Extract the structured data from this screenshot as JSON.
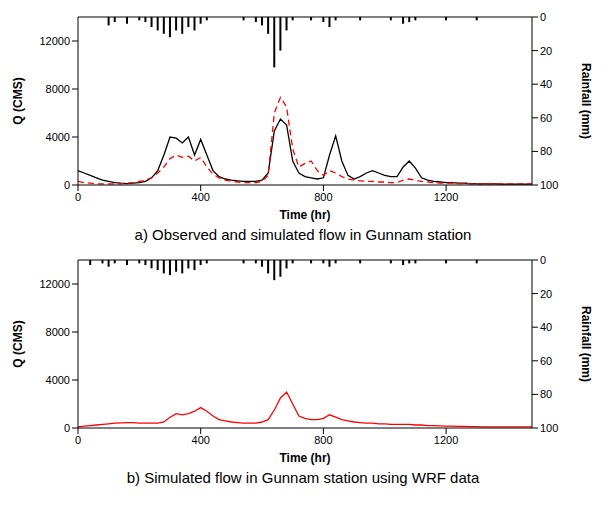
{
  "chart_data": [
    {
      "type": "line",
      "title": "a) Observed and simulated flow in Gunnam station",
      "x_label": "Time (hr)",
      "y_label": "Q (CMS)",
      "y2_label": "Rainfall (mm)",
      "x": [
        0,
        20,
        40,
        60,
        80,
        100,
        120,
        140,
        160,
        180,
        200,
        220,
        240,
        260,
        280,
        300,
        320,
        340,
        360,
        380,
        400,
        420,
        440,
        460,
        480,
        500,
        520,
        540,
        560,
        580,
        600,
        620,
        640,
        660,
        680,
        700,
        720,
        740,
        760,
        780,
        800,
        820,
        840,
        860,
        880,
        900,
        920,
        940,
        960,
        980,
        1000,
        1020,
        1040,
        1060,
        1080,
        1100,
        1120,
        1140,
        1160,
        1180,
        1200,
        1220,
        1240,
        1260,
        1280,
        1300,
        1320,
        1340,
        1360,
        1380,
        1400,
        1420,
        1440,
        1460,
        1480
      ],
      "xlim": [
        0,
        1480
      ],
      "xticks": [
        0,
        400,
        800,
        1200
      ],
      "ylim": [
        0,
        14000
      ],
      "yticks": [
        0,
        4000,
        8000,
        12000
      ],
      "y2lim": [
        100,
        0
      ],
      "y2ticks": [
        0,
        20,
        40,
        60,
        80,
        100
      ],
      "series": [
        {
          "type": "line",
          "color": "#000000",
          "line_style": "solid",
          "values": [
            1200,
            1000,
            800,
            600,
            400,
            300,
            200,
            150,
            120,
            150,
            200,
            300,
            600,
            1200,
            2500,
            4000,
            3900,
            3500,
            4000,
            2500,
            3800,
            2500,
            1200,
            700,
            500,
            400,
            350,
            300,
            300,
            300,
            400,
            1000,
            4500,
            5500,
            5000,
            2000,
            1000,
            700,
            600,
            500,
            600,
            2500,
            4100,
            2000,
            800,
            500,
            700,
            1000,
            1200,
            1000,
            800,
            700,
            700,
            1500,
            2000,
            1400,
            600,
            400,
            300,
            250,
            200,
            200,
            150,
            150,
            120,
            100,
            100,
            100,
            100,
            80,
            80,
            80,
            80,
            80,
            80
          ]
        },
        {
          "type": "line",
          "color": "#ff0000",
          "line_style": "dashed",
          "values": [
            300,
            200,
            150,
            100,
            100,
            100,
            100,
            100,
            150,
            200,
            300,
            400,
            600,
            1000,
            1500,
            2200,
            2500,
            2300,
            2400,
            2000,
            2300,
            1500,
            900,
            600,
            400,
            300,
            250,
            200,
            200,
            200,
            300,
            800,
            6000,
            7300,
            6500,
            3000,
            1500,
            1800,
            2000,
            1200,
            800,
            1200,
            1000,
            700,
            500,
            400,
            350,
            300,
            300,
            250,
            250,
            200,
            200,
            400,
            500,
            400,
            300,
            250,
            200,
            150,
            150,
            150,
            120,
            120,
            100,
            100,
            100,
            100,
            100,
            100,
            100,
            100,
            100,
            100,
            100
          ]
        },
        {
          "type": "bar",
          "axis": "y2",
          "color": "#000000",
          "values": [
            0,
            0,
            0,
            0,
            0,
            5,
            3,
            0,
            4,
            0,
            2,
            3,
            6,
            8,
            10,
            12,
            8,
            10,
            6,
            8,
            4,
            2,
            0,
            0,
            0,
            0,
            0,
            2,
            0,
            3,
            5,
            10,
            30,
            20,
            8,
            2,
            0,
            0,
            2,
            0,
            3,
            6,
            2,
            0,
            0,
            0,
            2,
            0,
            0,
            0,
            0,
            2,
            0,
            4,
            3,
            2,
            0,
            0,
            0,
            0,
            2,
            0,
            0,
            0,
            0,
            2,
            0,
            0,
            0,
            0,
            0,
            0,
            0,
            0,
            0
          ]
        }
      ]
    },
    {
      "type": "line",
      "title": "b) Simulated flow in Gunnam station using WRF data",
      "x_label": "Time (hr)",
      "y_label": "Q (CMS)",
      "y2_label": "Rainfall (mm)",
      "x": [
        0,
        20,
        40,
        60,
        80,
        100,
        120,
        140,
        160,
        180,
        200,
        220,
        240,
        260,
        280,
        300,
        320,
        340,
        360,
        380,
        400,
        420,
        440,
        460,
        480,
        500,
        520,
        540,
        560,
        580,
        600,
        620,
        640,
        660,
        680,
        700,
        720,
        740,
        760,
        780,
        800,
        820,
        840,
        860,
        880,
        900,
        920,
        940,
        960,
        980,
        1000,
        1020,
        1040,
        1060,
        1080,
        1100,
        1120,
        1140,
        1160,
        1180,
        1200,
        1220,
        1240,
        1260,
        1280,
        1300,
        1320,
        1340,
        1360,
        1380,
        1400,
        1420,
        1440,
        1460,
        1480
      ],
      "xlim": [
        0,
        1480
      ],
      "xticks": [
        0,
        400,
        800,
        1200
      ],
      "ylim": [
        0,
        14000
      ],
      "yticks": [
        0,
        4000,
        8000,
        12000
      ],
      "y2lim": [
        100,
        0
      ],
      "y2ticks": [
        0,
        20,
        40,
        60,
        80,
        100
      ],
      "series": [
        {
          "type": "line",
          "color": "#ff0000",
          "line_style": "solid",
          "values": [
            100,
            150,
            200,
            250,
            300,
            350,
            400,
            420,
            450,
            450,
            400,
            400,
            400,
            400,
            500,
            900,
            1200,
            1100,
            1200,
            1400,
            1700,
            1400,
            1000,
            700,
            600,
            500,
            450,
            400,
            400,
            400,
            500,
            700,
            1500,
            2500,
            3000,
            2000,
            1000,
            800,
            700,
            700,
            800,
            1100,
            900,
            700,
            600,
            500,
            450,
            400,
            400,
            350,
            350,
            300,
            300,
            300,
            300,
            250,
            250,
            200,
            200,
            180,
            160,
            150,
            140,
            130,
            120,
            110,
            100,
            100,
            100,
            100,
            100,
            100,
            100,
            100,
            100
          ]
        },
        {
          "type": "bar",
          "axis": "y2",
          "color": "#000000",
          "values": [
            0,
            0,
            3,
            0,
            2,
            4,
            2,
            0,
            3,
            0,
            2,
            3,
            5,
            6,
            8,
            9,
            7,
            8,
            5,
            6,
            3,
            2,
            0,
            0,
            0,
            0,
            0,
            2,
            0,
            2,
            4,
            8,
            12,
            10,
            5,
            2,
            0,
            0,
            2,
            0,
            2,
            4,
            2,
            0,
            0,
            0,
            2,
            0,
            0,
            0,
            0,
            2,
            0,
            3,
            2,
            2,
            0,
            0,
            0,
            0,
            2,
            0,
            0,
            0,
            0,
            2,
            0,
            0,
            0,
            0,
            0,
            0,
            0,
            0,
            0
          ]
        }
      ]
    }
  ]
}
